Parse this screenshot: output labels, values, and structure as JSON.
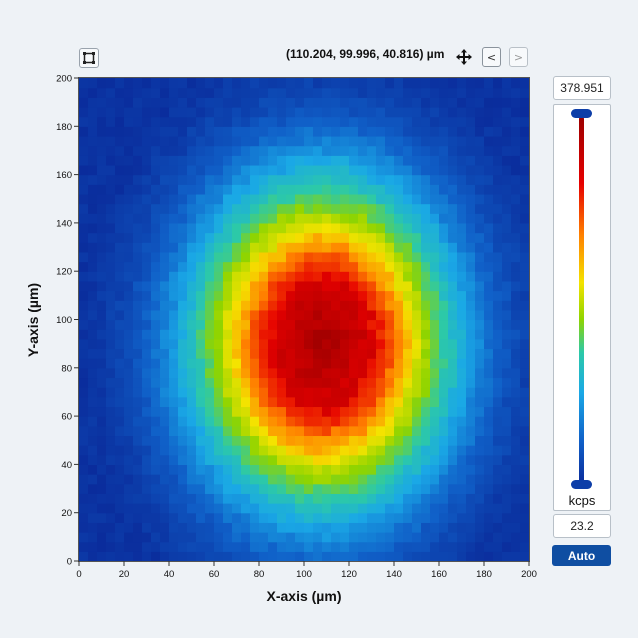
{
  "toolbar": {
    "coord_readout": "(110.204, 99.996, 40.816) µm",
    "prev_label": "<",
    "next_label": ">"
  },
  "plot": {
    "xlabel": "X-axis (µm)",
    "ylabel": "Y-axis (µm)",
    "xlim": [
      0,
      200
    ],
    "ylim": [
      0,
      200
    ],
    "x_ticks": [
      0,
      20,
      40,
      60,
      80,
      100,
      120,
      140,
      160,
      180,
      200
    ],
    "y_ticks": [
      0,
      20,
      40,
      60,
      80,
      100,
      120,
      140,
      160,
      180,
      200
    ],
    "grid_n": 50,
    "center": [
      108,
      90
    ],
    "peak_radius": 23,
    "colormap": [
      "#0a2a9a",
      "#1060c8",
      "#1aa8e6",
      "#2cc9a8",
      "#8fd400",
      "#f4e300",
      "#ff8000",
      "#e60000",
      "#9c0000"
    ]
  },
  "colorscale": {
    "max_value": "378.951",
    "min_value": "23.2",
    "unit": "kcps",
    "auto_label": "Auto"
  }
}
